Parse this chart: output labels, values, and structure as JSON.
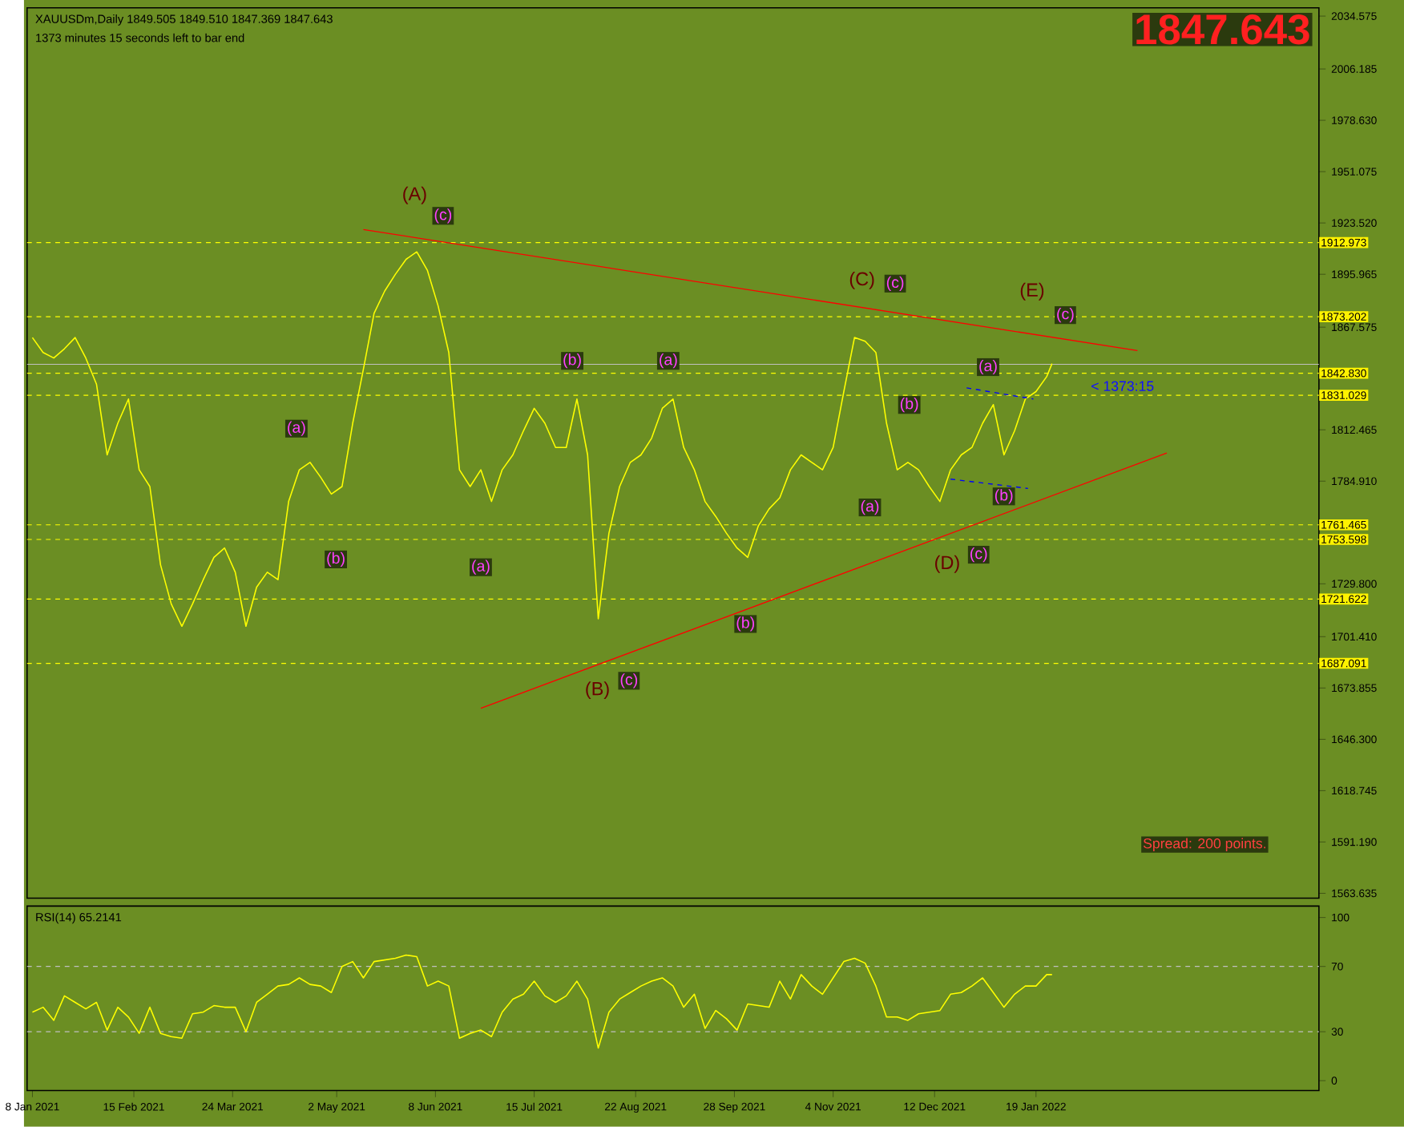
{
  "chart_data": [
    {
      "type": "line",
      "title": "XAUUSDm,Daily  1849.505 1849.510 1847.369 1847.643",
      "subtitle": "1373 minutes 15 seconds left to bar end",
      "xlim": [
        "2021-01-06",
        "2022-05-05"
      ],
      "ylim": [
        1561,
        2039
      ],
      "tick_labels": "y",
      "grid": false,
      "marker": "none",
      "line_style": "solid",
      "yticks": [
        {
          "value": 2034.575,
          "label": "2034.575"
        },
        {
          "value": 2006.185,
          "label": "2006.185"
        },
        {
          "value": 1978.63,
          "label": "1978.630"
        },
        {
          "value": 1951.075,
          "label": "1951.075"
        },
        {
          "value": 1923.52,
          "label": "1923.520"
        },
        {
          "value": 1895.965,
          "label": "1895.965"
        },
        {
          "value": 1867.575,
          "label": "1867.575"
        },
        {
          "value": 1812.465,
          "label": "1812.465"
        },
        {
          "value": 1784.91,
          "label": "1784.910"
        },
        {
          "value": 1729.8,
          "label": "1729.800"
        },
        {
          "value": 1701.41,
          "label": "1701.410"
        },
        {
          "value": 1673.855,
          "label": "1673.855"
        },
        {
          "value": 1646.3,
          "label": "1646.300"
        },
        {
          "value": 1618.745,
          "label": "1618.745"
        },
        {
          "value": 1591.19,
          "label": "1591.190"
        },
        {
          "value": 1563.635,
          "label": "1563.635"
        }
      ],
      "series": [
        {
          "color": "#ffff00",
          "x": [
            "2021-01-08",
            "2021-01-12",
            "2021-01-16",
            "2021-01-20",
            "2021-01-24",
            "2021-01-28",
            "2021-02-01",
            "2021-02-05",
            "2021-02-09",
            "2021-02-13",
            "2021-02-17",
            "2021-02-21",
            "2021-02-25",
            "2021-03-01",
            "2021-03-05",
            "2021-03-09",
            "2021-03-13",
            "2021-03-17",
            "2021-03-21",
            "2021-03-25",
            "2021-03-29",
            "2021-04-02",
            "2021-04-06",
            "2021-04-10",
            "2021-04-14",
            "2021-04-18",
            "2021-04-22",
            "2021-04-26",
            "2021-04-30",
            "2021-05-04",
            "2021-05-08",
            "2021-05-12",
            "2021-05-16",
            "2021-05-20",
            "2021-05-24",
            "2021-05-28",
            "2021-06-01",
            "2021-06-05",
            "2021-06-09",
            "2021-06-13",
            "2021-06-17",
            "2021-06-21",
            "2021-06-25",
            "2021-06-29",
            "2021-07-03",
            "2021-07-07",
            "2021-07-11",
            "2021-07-15",
            "2021-07-19",
            "2021-07-23",
            "2021-07-27",
            "2021-07-31",
            "2021-08-04",
            "2021-08-08",
            "2021-08-12",
            "2021-08-16",
            "2021-08-20",
            "2021-08-24",
            "2021-08-28",
            "2021-09-01",
            "2021-09-05",
            "2021-09-09",
            "2021-09-13",
            "2021-09-17",
            "2021-09-21",
            "2021-09-25",
            "2021-09-29",
            "2021-10-03",
            "2021-10-07",
            "2021-10-11",
            "2021-10-15",
            "2021-10-19",
            "2021-10-23",
            "2021-10-27",
            "2021-10-31",
            "2021-11-04",
            "2021-11-08",
            "2021-11-12",
            "2021-11-16",
            "2021-11-20",
            "2021-11-24",
            "2021-11-28",
            "2021-12-02",
            "2021-12-06",
            "2021-12-10",
            "2021-12-14",
            "2021-12-18",
            "2021-12-22",
            "2021-12-26",
            "2021-12-30",
            "2022-01-03",
            "2022-01-07",
            "2022-01-11",
            "2022-01-15",
            "2022-01-19",
            "2022-01-23",
            "2022-01-25"
          ],
          "values": [
            1862,
            1854,
            1851,
            1856,
            1862,
            1851,
            1837,
            1799,
            1816,
            1829,
            1791,
            1782,
            1740,
            1719,
            1707,
            1719,
            1732,
            1744,
            1749,
            1736,
            1707,
            1728,
            1736,
            1732,
            1774,
            1791,
            1795,
            1787,
            1778,
            1782,
            1816,
            1845,
            1875,
            1887,
            1896,
            1904,
            1908,
            1898,
            1879,
            1854,
            1791,
            1782,
            1791,
            1774,
            1791,
            1799,
            1812,
            1824,
            1816,
            1803,
            1803,
            1829,
            1799,
            1711,
            1757,
            1782,
            1795,
            1799,
            1808,
            1824,
            1829,
            1803,
            1791,
            1774,
            1766,
            1757,
            1749,
            1744,
            1761,
            1770,
            1776,
            1791,
            1799,
            1795,
            1791,
            1803,
            1833,
            1862,
            1860,
            1854,
            1816,
            1791,
            1795,
            1791,
            1782,
            1774,
            1791,
            1799,
            1803,
            1816,
            1826,
            1799,
            1812,
            1829,
            1833,
            1841,
            1848
          ]
        },
        {
          "type": "line",
          "color": "#ff0000",
          "x": [
            "2021-05-12",
            "2022-02-26"
          ],
          "values": [
            1920,
            1855
          ]
        },
        {
          "type": "line",
          "color": "#ff0000",
          "x": [
            "2021-06-25",
            "2022-03-09"
          ],
          "values": [
            1663,
            1800
          ]
        },
        {
          "type": "line",
          "color": "#0000ff",
          "line_style": "dashed",
          "x": [
            "2021-12-24",
            "2022-01-18"
          ],
          "values": [
            1835,
            1829
          ]
        },
        {
          "type": "line",
          "color": "#0000ff",
          "line_style": "dashed",
          "x": [
            "2021-12-18",
            "2022-01-16"
          ],
          "values": [
            1786,
            1781
          ]
        }
      ],
      "ref_lines": [
        {
          "axis": "y",
          "value": 1912.973,
          "label": "1912.973",
          "color": "#ffff00",
          "line_style": "dashed"
        },
        {
          "axis": "y",
          "value": 1873.202,
          "label": "1873.202",
          "color": "#ffff00",
          "line_style": "dashed"
        },
        {
          "axis": "y",
          "value": 1847.643,
          "color": "#c0c0c0",
          "line_style": "solid"
        },
        {
          "axis": "y",
          "value": 1842.83,
          "label": "1842.830",
          "color": "#ffff00",
          "line_style": "dashed"
        },
        {
          "axis": "y",
          "value": 1831.029,
          "label": "1831.029",
          "color": "#ffff00",
          "line_style": "dashed"
        },
        {
          "axis": "y",
          "value": 1761.465,
          "label": "1761.465",
          "color": "#ffff00",
          "line_style": "dashed"
        },
        {
          "axis": "y",
          "value": 1753.598,
          "label": "1753.598",
          "color": "#ffff00",
          "line_style": "dashed"
        },
        {
          "axis": "y",
          "value": 1721.622,
          "label": "1721.622",
          "color": "#ffff00",
          "line_style": "dashed"
        },
        {
          "axis": "y",
          "value": 1687.091,
          "label": "1687.091",
          "color": "#ffff00",
          "line_style": "dashed"
        }
      ],
      "annotations": [
        "1847.643",
        "Spread: 200 points.",
        "< 1373:15",
        "(A)",
        "(c)",
        "(a)",
        "(b)",
        "(a)",
        "(b)",
        "(a)",
        "(B)",
        "(c)",
        "(b)",
        "(a)",
        "(C)",
        "(c)",
        "(b)",
        "(D)",
        "(c)",
        "(a)",
        "(b)",
        "(E)",
        "(c)"
      ]
    },
    {
      "type": "line",
      "title": "RSI(14) 65.2141",
      "xlim": [
        "2021-01-06",
        "2022-05-05"
      ],
      "ylim": [
        -6,
        107
      ],
      "yticks": [
        0,
        30,
        70,
        100
      ],
      "grid": false,
      "marker": "none",
      "line_style": "solid",
      "xticks": [
        {
          "value": "2021-01-08",
          "label": "8 Jan 2021"
        },
        {
          "value": "2021-02-15",
          "label": "15 Feb 2021"
        },
        {
          "value": "2021-03-24",
          "label": "24 Mar 2021"
        },
        {
          "value": "2021-05-02",
          "label": "2 May 2021"
        },
        {
          "value": "2021-06-08",
          "label": "8 Jun 2021"
        },
        {
          "value": "2021-07-15",
          "label": "15 Jul 2021"
        },
        {
          "value": "2021-08-22",
          "label": "22 Aug 2021"
        },
        {
          "value": "2021-09-28",
          "label": "28 Sep 2021"
        },
        {
          "value": "2021-11-04",
          "label": "4 Nov 2021"
        },
        {
          "value": "2021-12-12",
          "label": "12 Dec 2021"
        },
        {
          "value": "2022-01-19",
          "label": "19 Jan 2022"
        }
      ],
      "series": [
        {
          "color": "#ffff00",
          "x": [
            "2021-01-08",
            "2021-01-12",
            "2021-01-16",
            "2021-01-20",
            "2021-01-24",
            "2021-01-28",
            "2021-02-01",
            "2021-02-05",
            "2021-02-09",
            "2021-02-13",
            "2021-02-17",
            "2021-02-21",
            "2021-02-25",
            "2021-03-01",
            "2021-03-05",
            "2021-03-09",
            "2021-03-13",
            "2021-03-17",
            "2021-03-21",
            "2021-03-25",
            "2021-03-29",
            "2021-04-02",
            "2021-04-06",
            "2021-04-10",
            "2021-04-14",
            "2021-04-18",
            "2021-04-22",
            "2021-04-26",
            "2021-04-30",
            "2021-05-04",
            "2021-05-08",
            "2021-05-12",
            "2021-05-16",
            "2021-05-20",
            "2021-05-24",
            "2021-05-28",
            "2021-06-01",
            "2021-06-05",
            "2021-06-09",
            "2021-06-13",
            "2021-06-17",
            "2021-06-21",
            "2021-06-25",
            "2021-06-29",
            "2021-07-03",
            "2021-07-07",
            "2021-07-11",
            "2021-07-15",
            "2021-07-19",
            "2021-07-23",
            "2021-07-27",
            "2021-07-31",
            "2021-08-04",
            "2021-08-08",
            "2021-08-12",
            "2021-08-16",
            "2021-08-20",
            "2021-08-24",
            "2021-08-28",
            "2021-09-01",
            "2021-09-05",
            "2021-09-09",
            "2021-09-13",
            "2021-09-17",
            "2021-09-21",
            "2021-09-25",
            "2021-09-29",
            "2021-10-03",
            "2021-10-07",
            "2021-10-11",
            "2021-10-15",
            "2021-10-19",
            "2021-10-23",
            "2021-10-27",
            "2021-10-31",
            "2021-11-04",
            "2021-11-08",
            "2021-11-12",
            "2021-11-16",
            "2021-11-20",
            "2021-11-24",
            "2021-11-28",
            "2021-12-02",
            "2021-12-06",
            "2021-12-10",
            "2021-12-14",
            "2021-12-18",
            "2021-12-22",
            "2021-12-26",
            "2021-12-30",
            "2022-01-03",
            "2022-01-07",
            "2022-01-11",
            "2022-01-15",
            "2022-01-19",
            "2022-01-23",
            "2022-01-25"
          ],
          "values": [
            42,
            45,
            37,
            52,
            48,
            44,
            48,
            31,
            45,
            39,
            29,
            45,
            29,
            27,
            26,
            41,
            42,
            46,
            45,
            45,
            30,
            48,
            53,
            58,
            59,
            63,
            59,
            58,
            54,
            70,
            73,
            63,
            73,
            74,
            75,
            77,
            76,
            58,
            61,
            58,
            26,
            29,
            31,
            27,
            42,
            50,
            53,
            61,
            52,
            48,
            52,
            61,
            50,
            20,
            42,
            50,
            54,
            58,
            61,
            63,
            58,
            45,
            53,
            32,
            43,
            38,
            31,
            47,
            46,
            45,
            61,
            50,
            65,
            58,
            53,
            63,
            73,
            75,
            72,
            58,
            39,
            39,
            37,
            41,
            42,
            43,
            53,
            54,
            58,
            63,
            54,
            45,
            53,
            58,
            58,
            65,
            65
          ]
        }
      ],
      "ref_lines": [
        {
          "axis": "y",
          "value": 30,
          "color": "#c0c0c0",
          "line_style": "dashed"
        },
        {
          "axis": "y",
          "value": 70,
          "color": "#c0c0c0",
          "line_style": "dashed"
        }
      ]
    }
  ]
}
